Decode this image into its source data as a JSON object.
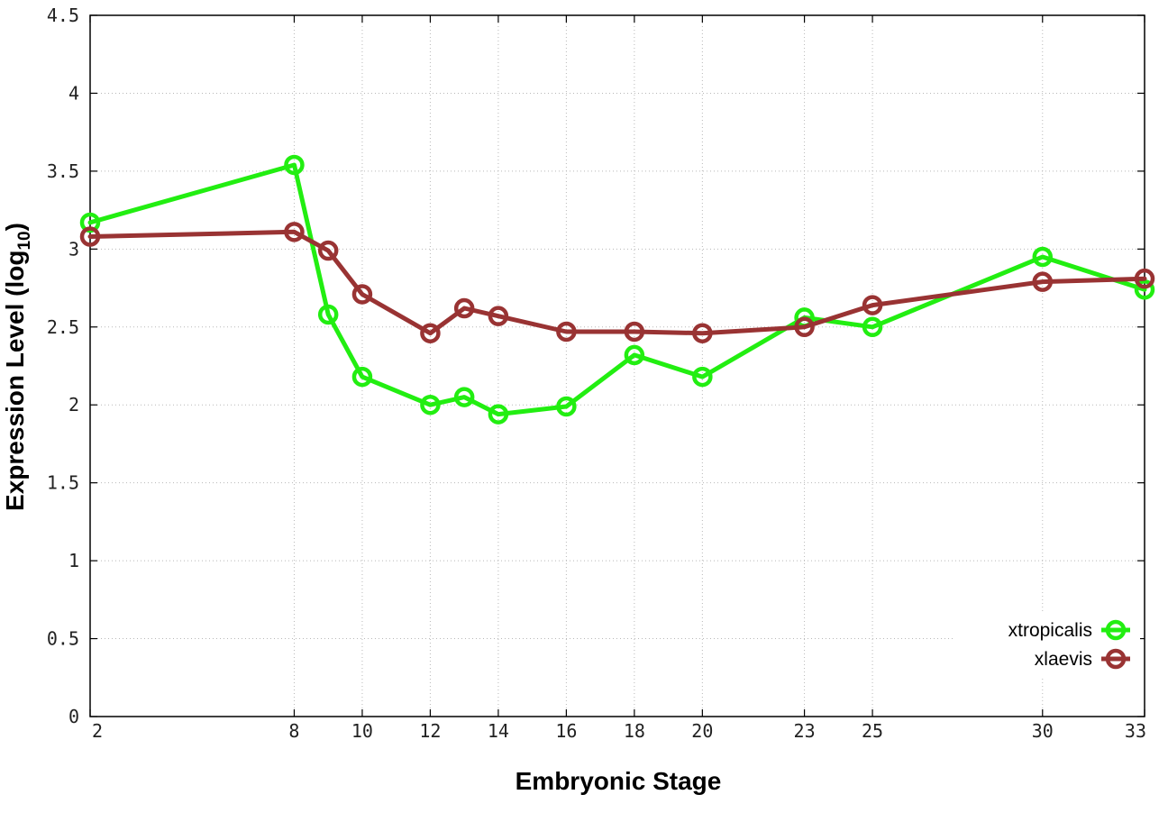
{
  "chart_data": {
    "type": "line",
    "title": "",
    "xlabel": "Embryonic Stage",
    "ylabel_main": "Expression Level (log",
    "ylabel_sub": "10",
    "ylabel_close": ")",
    "x": [
      2,
      8,
      9,
      10,
      12,
      13,
      14,
      16,
      18,
      20,
      23,
      25,
      30,
      33
    ],
    "x_ticks": [
      2,
      8,
      10,
      12,
      14,
      16,
      18,
      20,
      23,
      25,
      30,
      33
    ],
    "x_tick_labels": [
      "2",
      "8",
      "10",
      "12",
      "14",
      "16",
      "18",
      "20",
      "23",
      "25",
      "30",
      "33"
    ],
    "xlim": [
      2,
      33
    ],
    "ylim": [
      0,
      4.5
    ],
    "y_ticks": [
      0,
      0.5,
      1,
      1.5,
      2,
      2.5,
      3,
      3.5,
      4,
      4.5
    ],
    "y_tick_labels": [
      "0",
      "0.5",
      "1",
      "1.5",
      "2",
      "2.5",
      "3",
      "3.5",
      "4",
      "4.5"
    ],
    "grid": true,
    "legend_position": "bottom-right",
    "series": [
      {
        "name": "xtropicalis",
        "color": "#22ee11",
        "values": [
          3.17,
          3.54,
          2.58,
          2.18,
          2.0,
          2.05,
          1.94,
          1.99,
          2.32,
          2.18,
          2.56,
          2.5,
          2.95,
          2.74
        ]
      },
      {
        "name": "xlaevis",
        "color": "#993333",
        "values": [
          3.08,
          3.11,
          2.99,
          2.71,
          2.46,
          2.62,
          2.57,
          2.47,
          2.47,
          2.46,
          2.5,
          2.64,
          2.79,
          2.81
        ]
      }
    ]
  }
}
